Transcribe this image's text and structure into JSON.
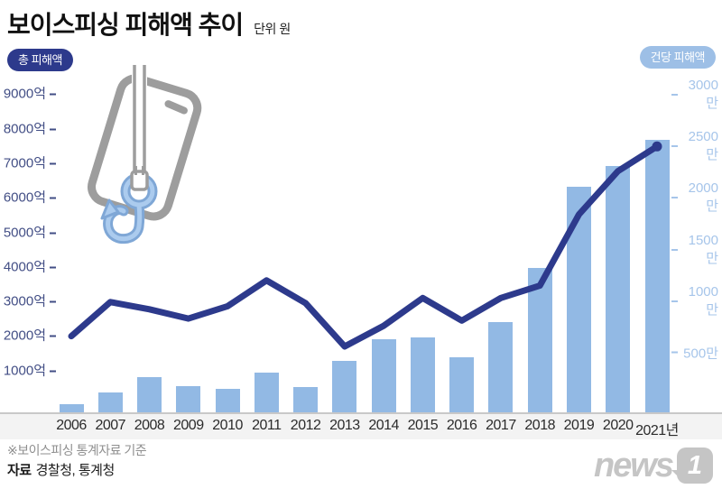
{
  "header": {
    "title": "보이스피싱 피해액 추이",
    "unit": "단위 원"
  },
  "legend": {
    "left_badge": "총 피해액",
    "right_badge": "건당 피해액"
  },
  "colors": {
    "bar": "#92b9e4",
    "line": "#2d3a8c",
    "badge_left_bg": "#2d3a8c",
    "badge_right_bg": "#9dbfe6",
    "left_axis_text": "#424e85",
    "right_axis_text": "#a6c5ea",
    "badge_text": "#ffffff"
  },
  "chart_data": {
    "type": "bar+line combo",
    "title": "보이스피싱 피해액 추이",
    "grid": false,
    "legend_position": "top",
    "categories": [
      "2006",
      "2007",
      "2008",
      "2009",
      "2010",
      "2011",
      "2012",
      "2013",
      "2014",
      "2015",
      "2016",
      "2017",
      "2018",
      "2019",
      "2020",
      "2021년"
    ],
    "series": [
      {
        "name": "총 피해액",
        "type": "bar",
        "axis": "left",
        "unit": "억 원",
        "values": [
          106,
          434,
          877,
          621,
          554,
          1019,
          595,
          1365,
          1973,
          2040,
          1468,
          2470,
          4040,
          6398,
          7000,
          7744
        ]
      },
      {
        "name": "건당 피해액",
        "type": "line",
        "axis": "right",
        "unit": "만 원",
        "values": [
          660,
          990,
          920,
          830,
          950,
          1200,
          980,
          560,
          760,
          1030,
          810,
          1030,
          1150,
          1840,
          2260,
          2500
        ]
      }
    ],
    "left_axis": {
      "labels": [
        "1000억",
        "2000억",
        "3000억",
        "4000억",
        "5000억",
        "6000억",
        "7000억",
        "8000억",
        "9000억"
      ],
      "values": [
        1000,
        2000,
        3000,
        4000,
        5000,
        6000,
        7000,
        8000,
        9000
      ],
      "range": [
        0,
        9000
      ]
    },
    "right_axis": {
      "labels": [
        "500만",
        "1000만",
        "1500만",
        "2000만",
        "2500만",
        "3000만"
      ],
      "values": [
        500,
        1000,
        1500,
        2000,
        2500,
        3000
      ],
      "range": [
        0,
        3000
      ]
    }
  },
  "footer": {
    "note": "※보이스피싱 통계자료 기준",
    "source_label": "자료",
    "source_value": "경찰청, 통계청",
    "logo_text": "news",
    "logo_one": "1"
  }
}
